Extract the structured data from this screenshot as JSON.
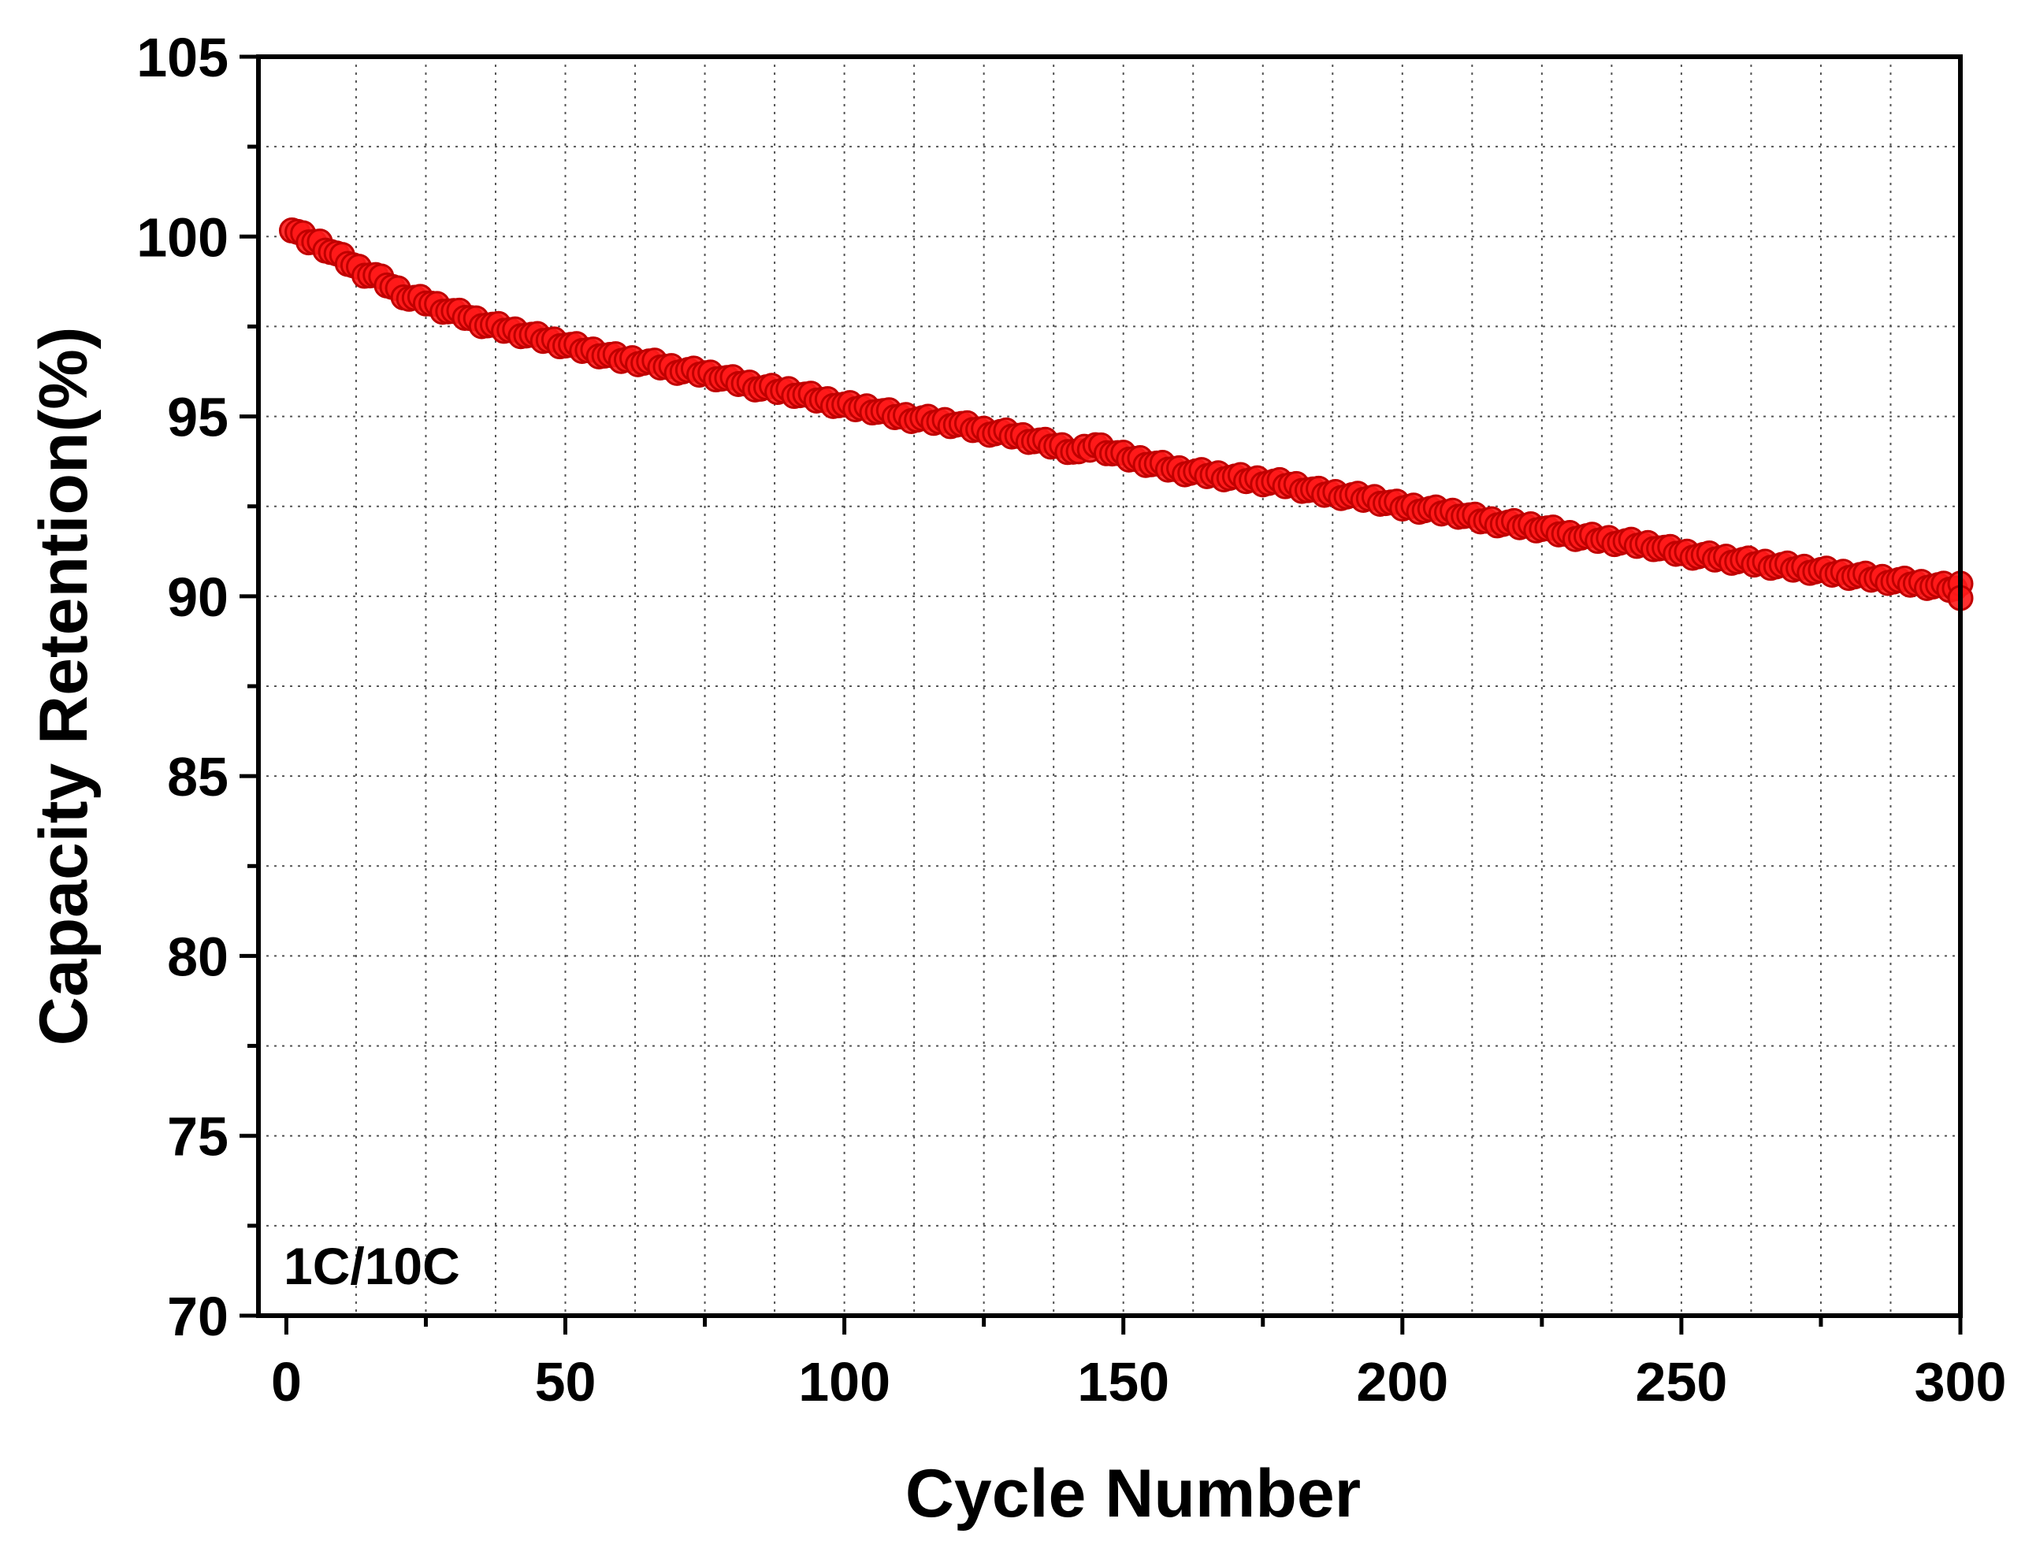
{
  "chart_data": {
    "type": "scatter",
    "title": "",
    "xlabel": "Cycle Number",
    "ylabel": "Capacity Retention(%)",
    "xlim": [
      -5,
      300
    ],
    "ylim": [
      70,
      105
    ],
    "x_ticks": [
      0,
      50,
      100,
      150,
      200,
      250,
      300
    ],
    "y_ticks": [
      70,
      75,
      80,
      85,
      90,
      95,
      100,
      105
    ],
    "x_tick_labels": [
      "0",
      "50",
      "100",
      "150",
      "200",
      "250",
      "300"
    ],
    "y_tick_labels": [
      "70",
      "75",
      "80",
      "85",
      "90",
      "95",
      "100",
      "105"
    ],
    "grid": true,
    "annotation": "1C/10C",
    "marker_color": "#ff1a1a",
    "series": [
      {
        "x": [
          1,
          2,
          4,
          6,
          8,
          10,
          12,
          14,
          16,
          18,
          20,
          22,
          25,
          28,
          30,
          32,
          35,
          40,
          45,
          50,
          55,
          60,
          65,
          70,
          75,
          80,
          85,
          90,
          95,
          100,
          105,
          110,
          115,
          120,
          125,
          130,
          135,
          140,
          142,
          145,
          148,
          150,
          155,
          160,
          165,
          170,
          175,
          180,
          185,
          190,
          195,
          200,
          205,
          210,
          215,
          220,
          225,
          230,
          235,
          240,
          245,
          250,
          255,
          260,
          265,
          270,
          275,
          280,
          285,
          290,
          295,
          300
        ],
        "y": [
          100.2,
          100.1,
          99.9,
          99.8,
          99.6,
          99.4,
          99.2,
          99.0,
          98.9,
          98.7,
          98.5,
          98.3,
          98.2,
          98.0,
          97.9,
          97.8,
          97.6,
          97.4,
          97.2,
          97.0,
          96.8,
          96.6,
          96.5,
          96.3,
          96.2,
          96.0,
          95.8,
          95.7,
          95.5,
          95.3,
          95.2,
          95.0,
          94.9,
          94.8,
          94.6,
          94.5,
          94.3,
          94.1,
          94.0,
          94.2,
          94.0,
          93.9,
          93.7,
          93.5,
          93.4,
          93.3,
          93.2,
          93.1,
          92.9,
          92.8,
          92.7,
          92.5,
          92.4,
          92.3,
          92.1,
          92.0,
          91.9,
          91.7,
          91.6,
          91.5,
          91.4,
          91.2,
          91.1,
          91.0,
          90.9,
          90.8,
          90.7,
          90.6,
          90.5,
          90.4,
          90.3,
          90.2
        ]
      }
    ]
  }
}
